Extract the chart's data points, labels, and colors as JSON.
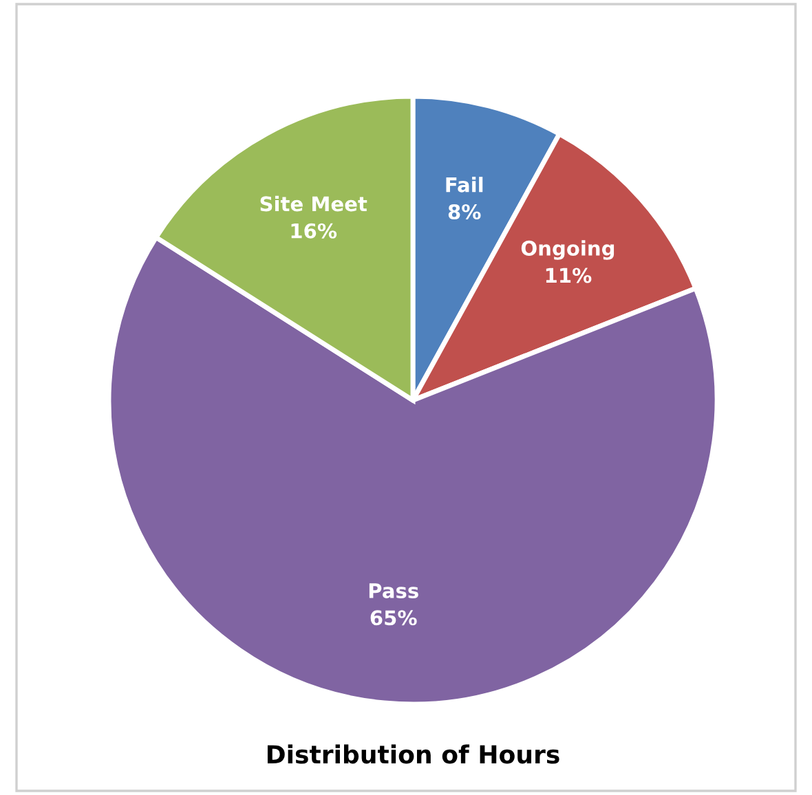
{
  "chart_data": {
    "type": "pie",
    "title": "Distribution of Hours",
    "categories": [
      "Fail",
      "Ongoing",
      "Pass",
      "Site Meet"
    ],
    "values": [
      8,
      11,
      65,
      16
    ],
    "colors": [
      "#4f81bd",
      "#c0504d",
      "#8064a2",
      "#9bbb59"
    ],
    "value_labels": [
      "8%",
      "11%",
      "65%",
      "16%"
    ]
  }
}
